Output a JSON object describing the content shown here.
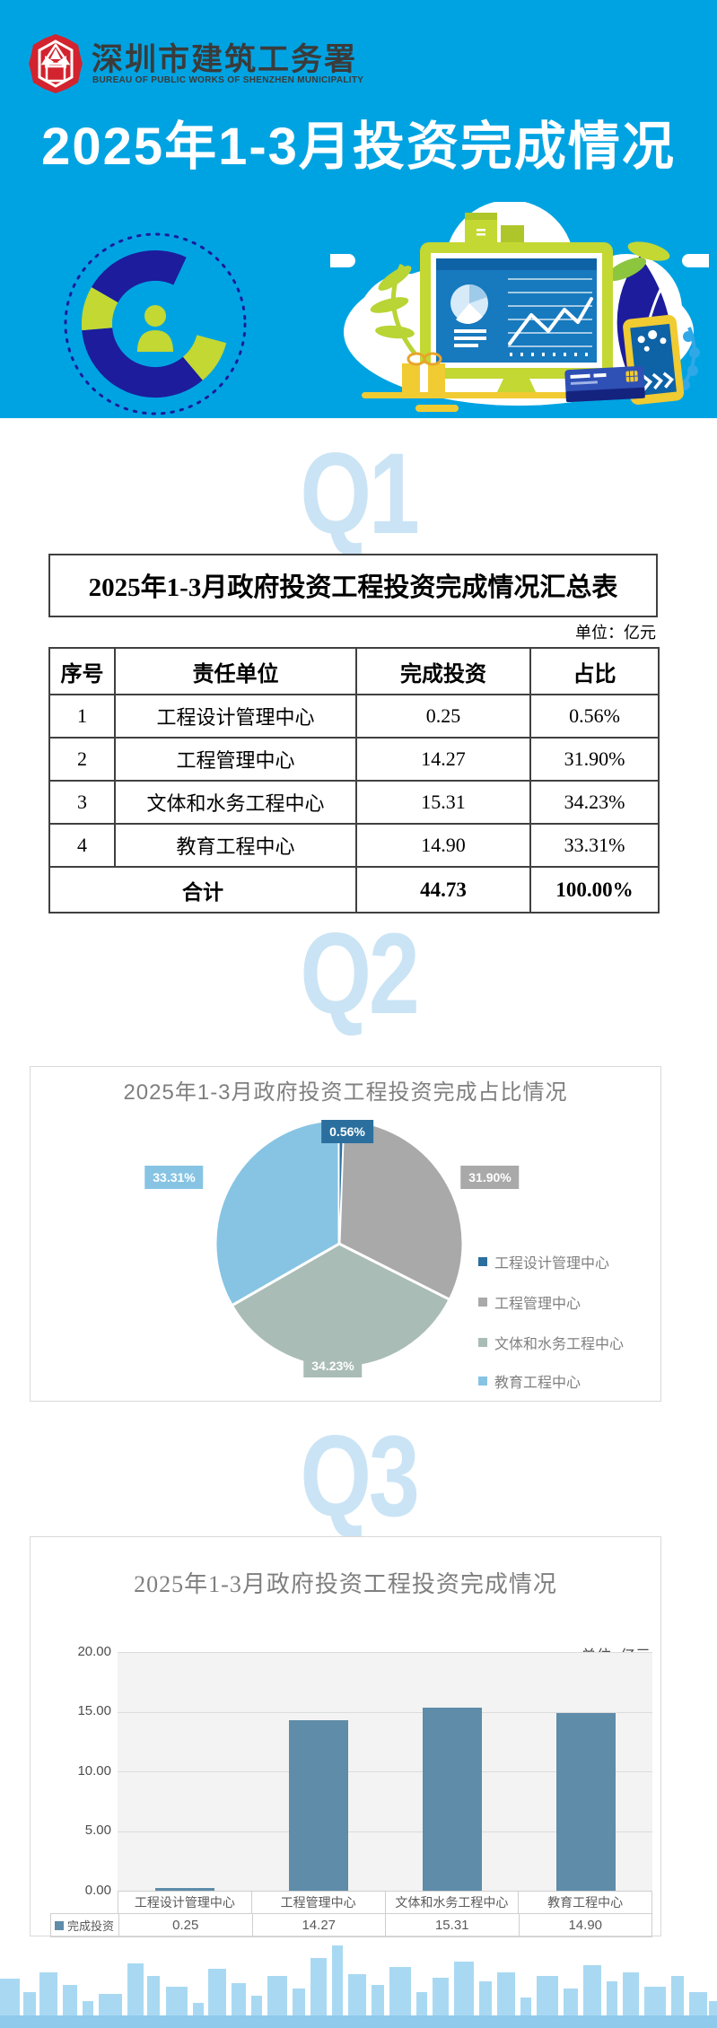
{
  "header": {
    "org_name_cn": "深圳市建筑工务署",
    "org_name_en": "BUREAU OF PUBLIC WORKS OF SHENZHEN MUNICIPALITY",
    "title": "2025年1-3月投资完成情况",
    "background_color": "#00A3E2",
    "logo_color": "#D2232E"
  },
  "sections": {
    "q1": "Q1",
    "q2": "Q2",
    "q3": "Q3"
  },
  "summary_table": {
    "title": "2025年1-3月政府投资工程投资完成情况汇总表",
    "unit_note": "单位：亿元",
    "columns": [
      "序号",
      "责任单位",
      "完成投资",
      "占比"
    ],
    "rows": [
      [
        "1",
        "工程设计管理中心",
        "0.25",
        "0.56%"
      ],
      [
        "2",
        "工程管理中心",
        "14.27",
        "31.90%"
      ],
      [
        "3",
        "文体和水务工程中心",
        "15.31",
        "34.23%"
      ],
      [
        "4",
        "教育工程中心",
        "14.90",
        "33.31%"
      ]
    ],
    "total_label": "合计",
    "total_value": "44.73",
    "total_pct": "100.00%"
  },
  "chart_data": [
    {
      "type": "pie",
      "title": "2025年1-3月政府投资工程投资完成占比情况",
      "labels": [
        "工程设计管理中心",
        "工程管理中心",
        "文体和水务工程中心",
        "教育工程中心"
      ],
      "values": [
        0.56,
        31.9,
        34.23,
        33.31
      ],
      "value_labels": [
        "0.56%",
        "31.90%",
        "34.23%",
        "33.31%"
      ],
      "colors": [
        "#2B6F9E",
        "#A9A9A9",
        "#A9BCB5",
        "#87C4E4"
      ],
      "legend_position": "right",
      "slice_border": "#ffffff"
    },
    {
      "type": "bar",
      "title": "2025年1-3月政府投资工程投资完成情况",
      "unit_note": "单位: 亿元",
      "categories": [
        "工程设计管理中心",
        "工程管理中心",
        "文体和水务工程中心",
        "教育工程中心"
      ],
      "series": [
        {
          "name": "完成投资",
          "values": [
            0.25,
            14.27,
            15.31,
            14.9
          ]
        }
      ],
      "value_labels": [
        "0.25",
        "14.27",
        "15.31",
        "14.90"
      ],
      "ylim": [
        0,
        20
      ],
      "yticks": [
        "20.00",
        "15.00",
        "10.00",
        "5.00",
        "0.00"
      ],
      "bar_color": "#5E8CA9",
      "grid": true,
      "legend_position": "bottom-table"
    }
  ]
}
